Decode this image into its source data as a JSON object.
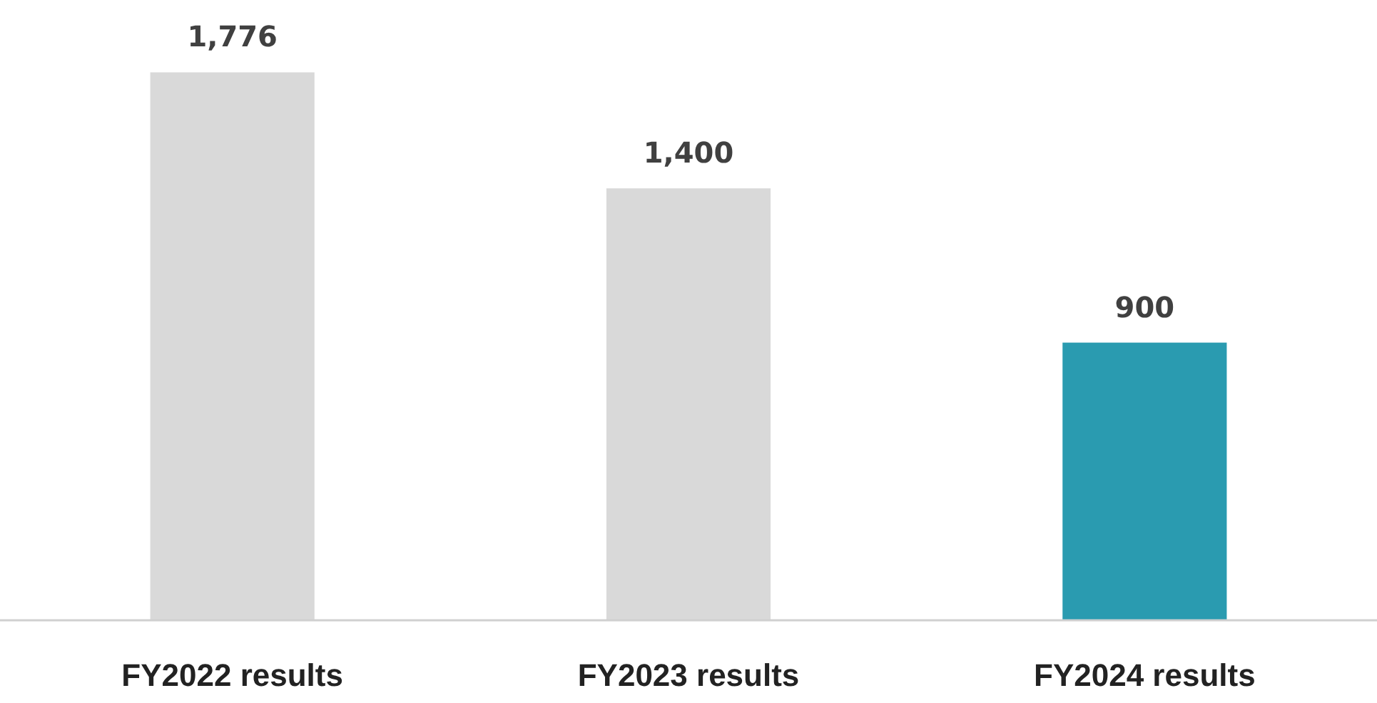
{
  "chart_data": {
    "type": "bar",
    "categories": [
      "FY2022 results",
      "FY2023 results",
      "FY2024 results"
    ],
    "values": [
      1776,
      1400,
      900
    ],
    "value_labels": [
      "1,776",
      "1,400",
      "900"
    ],
    "colors": [
      "#d9d9d9",
      "#d9d9d9",
      "#2a9bb0"
    ]
  }
}
